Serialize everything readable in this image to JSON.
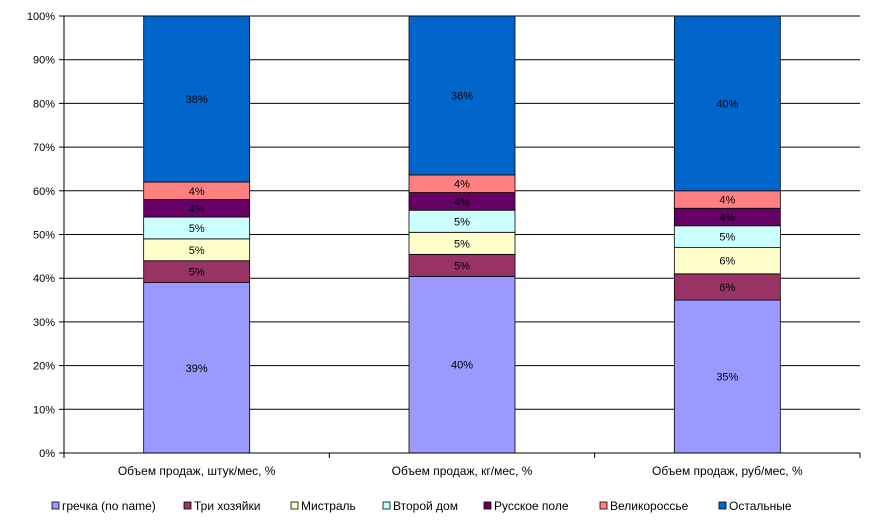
{
  "chart_data": {
    "type": "stacked-bar-100",
    "title": "",
    "xlabel": "",
    "ylabel": "",
    "ylim": [
      0,
      100
    ],
    "y_ticks": [
      "0%",
      "10%",
      "20%",
      "30%",
      "40%",
      "50%",
      "60%",
      "70%",
      "80%",
      "90%",
      "100%"
    ],
    "y_tick_values": [
      0,
      10,
      20,
      30,
      40,
      50,
      60,
      70,
      80,
      90,
      100
    ],
    "grid": "horizontal",
    "legend_position": "bottom",
    "categories": [
      "Объем продаж, штук/мес, %",
      "Объем продаж, кг/мес, %",
      "Объем продаж, руб/мес, %"
    ],
    "series": [
      {
        "name": "гречка (no name)",
        "color": "#9999ff",
        "values": [
          39,
          40,
          35
        ],
        "labels": [
          "39%",
          "40%",
          "35%"
        ]
      },
      {
        "name": "Три хозяйки",
        "color": "#993366",
        "values": [
          5,
          5,
          6
        ],
        "labels": [
          "5%",
          "5%",
          "6%"
        ]
      },
      {
        "name": "Мистраль",
        "color": "#ffffcc",
        "values": [
          5,
          5,
          6
        ],
        "labels": [
          "5%",
          "5%",
          "6%"
        ]
      },
      {
        "name": "Второй дом",
        "color": "#ccffff",
        "values": [
          5,
          5,
          5
        ],
        "labels": [
          "5%",
          "5%",
          "5%"
        ]
      },
      {
        "name": "Русское поле",
        "color": "#660066",
        "values": [
          4,
          4,
          4
        ],
        "labels": [
          "4%",
          "4%",
          "4%"
        ]
      },
      {
        "name": "Великороссье",
        "color": "#ff8080",
        "values": [
          4,
          4,
          4
        ],
        "labels": [
          "4%",
          "4%",
          "4%"
        ]
      },
      {
        "name": "Остальные",
        "color": "#0066cc",
        "values": [
          38,
          36,
          40
        ],
        "labels": [
          "38%",
          "36%",
          "40%"
        ]
      }
    ]
  }
}
